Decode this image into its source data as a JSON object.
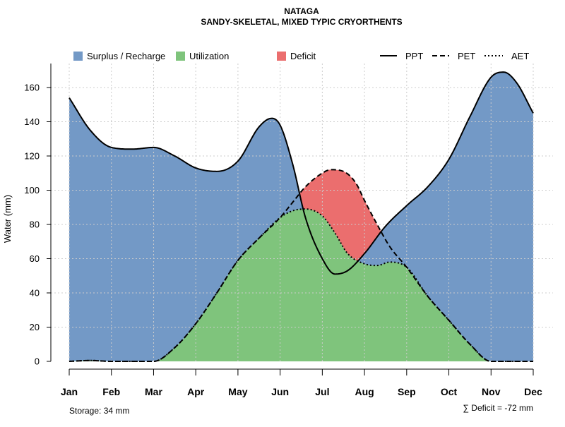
{
  "chart_data": {
    "type": "area",
    "title": "NATAGA",
    "subtitle": "SANDY-SKELETAL, MIXED TYPIC CRYORTHENTS",
    "ylabel": "Water (mm)",
    "xlabel": "",
    "ylim": [
      0,
      175
    ],
    "yticks": [
      0,
      20,
      40,
      60,
      80,
      100,
      120,
      140,
      160
    ],
    "categories": [
      "Jan",
      "Feb",
      "Mar",
      "Apr",
      "May",
      "Jun",
      "Jul",
      "Aug",
      "Sep",
      "Oct",
      "Nov",
      "Dec"
    ],
    "grid": true,
    "legend_position": "top",
    "legend": {
      "surplus": "Surplus / Recharge",
      "utilization": "Utilization",
      "deficit": "Deficit",
      "ppt": "PPT",
      "pet": "PET",
      "aet": "AET"
    },
    "colors": {
      "surplus": "#7399c6",
      "utilization": "#7fc47c",
      "deficit": "#eb6e6e",
      "line": "#000000",
      "grid": "#cccccc"
    },
    "series": [
      {
        "name": "PPT",
        "x": [
          1,
          1.5,
          2,
          2.5,
          3,
          3.5,
          4,
          4.5,
          5,
          5.5,
          5.8,
          6,
          6.3,
          6.6,
          7,
          7.3,
          7.6,
          8,
          8.5,
          9,
          9.5,
          10,
          10.5,
          11,
          11.3,
          11.6,
          12
        ],
        "values": [
          154,
          135,
          125,
          124,
          125,
          120,
          113,
          111,
          117,
          137,
          142,
          138,
          115,
          84,
          60,
          51,
          53,
          63,
          79,
          91,
          102,
          118,
          143,
          166,
          169,
          163,
          145
        ]
      },
      {
        "name": "PET",
        "x": [
          1,
          1.5,
          2,
          2.5,
          3,
          3.5,
          4,
          4.5,
          5,
          5.5,
          6,
          6.3,
          6.6,
          7,
          7.2,
          7.5,
          7.8,
          8,
          8.3,
          8.6,
          9,
          9.5,
          10,
          10.5,
          11,
          11.5,
          12
        ],
        "values": [
          0,
          0.5,
          0,
          0,
          0,
          8,
          22,
          40,
          59,
          72,
          84,
          93,
          102,
          110,
          112,
          111,
          104,
          94,
          80,
          67,
          55,
          38,
          24,
          10,
          0,
          0,
          0
        ]
      },
      {
        "name": "AET",
        "x": [
          1,
          1.5,
          2,
          2.5,
          3,
          3.5,
          4,
          4.5,
          5,
          5.5,
          6,
          6.3,
          6.6,
          7,
          7.3,
          7.6,
          8,
          8.3,
          8.6,
          9,
          9.5,
          10,
          10.5,
          11,
          11.5,
          12
        ],
        "values": [
          0,
          0.5,
          0,
          0,
          0,
          8,
          22,
          40,
          59,
          72,
          84,
          88,
          89,
          85,
          75,
          63,
          57,
          56,
          58,
          55,
          38,
          24,
          10,
          0,
          0,
          0
        ]
      }
    ],
    "annotations": {
      "storage": "Storage: 34 mm",
      "deficit_total": "∑ Deficit = -72 mm"
    }
  }
}
